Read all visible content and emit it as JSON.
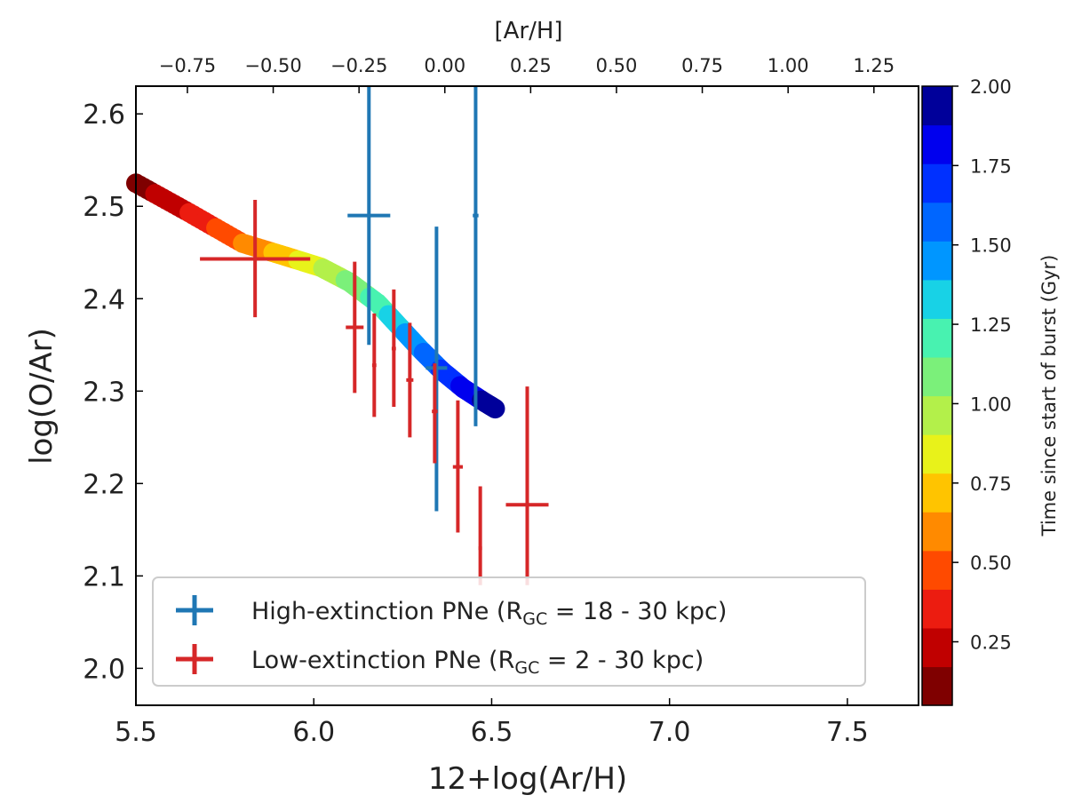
{
  "chart_data": {
    "type": "scatter",
    "title": "",
    "xlabel": "12+log(Ar/H)",
    "ylabel": "log(O/Ar)",
    "top_xlabel": "[Ar/H]",
    "colorbar_label": "Time since start of burst  (Gyr)",
    "xlim": [
      5.5,
      7.7
    ],
    "ylim": [
      1.96,
      2.63
    ],
    "top_xlim": [
      -0.9,
      1.38
    ],
    "x_ticks": [
      "5.5",
      "6.0",
      "6.5",
      "7.0",
      "7.5"
    ],
    "y_ticks": [
      "2.0",
      "2.1",
      "2.2",
      "2.3",
      "2.4",
      "2.5",
      "2.6"
    ],
    "top_ticks": [
      "−0.75",
      "−0.50",
      "−0.25",
      "0.00",
      "0.25",
      "0.50",
      "0.75",
      "1.00",
      "1.25"
    ],
    "colorbar_ticks": [
      "0.25",
      "0.50",
      "0.75",
      "1.00",
      "1.25",
      "1.50",
      "1.75",
      "2.00"
    ],
    "colorbar_range": [
      0.05,
      2.0
    ],
    "colorbar_colors": [
      "#7f0000",
      "#c00000",
      "#ec1c10",
      "#ff4a00",
      "#ff8a00",
      "#ffc400",
      "#e8f21a",
      "#b3f04a",
      "#7bf07a",
      "#48f2b0",
      "#18d2e6",
      "#0096ff",
      "#0066ff",
      "#0030ff",
      "#0000ee",
      "#00009a"
    ],
    "model_track": {
      "name": "Model track",
      "x": [
        5.5,
        5.65,
        5.8,
        5.92,
        6.02,
        6.1,
        6.18,
        6.24,
        6.3,
        6.36,
        6.42,
        6.48,
        6.51
      ],
      "y": [
        2.525,
        2.493,
        2.46,
        2.446,
        2.434,
        2.418,
        2.395,
        2.37,
        2.345,
        2.322,
        2.303,
        2.288,
        2.281
      ],
      "time": [
        0.12,
        0.3,
        0.55,
        0.72,
        0.9,
        1.05,
        1.2,
        1.35,
        1.5,
        1.65,
        1.78,
        1.9,
        1.98
      ]
    },
    "series": [
      {
        "name": "High-extinction PNe (R_GC = 18 - 30 kpc)",
        "color": "#1f77b4",
        "points": [
          {
            "x": 6.155,
            "y": 2.49,
            "xerr": 0.06,
            "y_low": 2.35,
            "y_high": 2.63
          },
          {
            "x": 6.345,
            "y": 2.325,
            "xerr": 0.03,
            "y_low": 2.17,
            "y_high": 2.478
          },
          {
            "x": 6.455,
            "y": 2.49,
            "xerr": 0.008,
            "y_low": 2.262,
            "y_high": 2.63
          }
        ]
      },
      {
        "name": "Low-extinction PNe (R_GC = 2 - 30 kpc)",
        "color": "#d62728",
        "points": [
          {
            "x": 5.835,
            "y": 2.443,
            "xerr": 0.155,
            "y_low": 2.38,
            "y_high": 2.507
          },
          {
            "x": 6.115,
            "y": 2.369,
            "xerr": 0.025,
            "y_low": 2.298,
            "y_high": 2.44
          },
          {
            "x": 6.17,
            "y": 2.328,
            "xerr": 0.006,
            "y_low": 2.272,
            "y_high": 2.384
          },
          {
            "x": 6.225,
            "y": 2.346,
            "xerr": 0.006,
            "y_low": 2.283,
            "y_high": 2.41
          },
          {
            "x": 6.27,
            "y": 2.312,
            "xerr": 0.01,
            "y_low": 2.25,
            "y_high": 2.374
          },
          {
            "x": 6.34,
            "y": 2.278,
            "xerr": 0.008,
            "y_low": 2.222,
            "y_high": 2.33
          },
          {
            "x": 6.405,
            "y": 2.218,
            "xerr": 0.014,
            "y_low": 2.147,
            "y_high": 2.29
          },
          {
            "x": 6.468,
            "y": 2.13,
            "xerr": 0.005,
            "y_low": 2.09,
            "y_high": 2.197
          },
          {
            "x": 6.6,
            "y": 2.177,
            "xerr": 0.06,
            "y_low": 2.09,
            "y_high": 2.305
          }
        ]
      }
    ],
    "legend": {
      "placement": "lower-left",
      "entries": [
        {
          "prefix": "High-extinction PNe (R",
          "sub": "GC",
          "suffix": " = 18 - 30 kpc)",
          "color": "#1f77b4"
        },
        {
          "prefix": "Low-extinction PNe (R",
          "sub": "GC",
          "suffix": " = 2 - 30 kpc)",
          "color": "#d62728"
        }
      ]
    }
  }
}
